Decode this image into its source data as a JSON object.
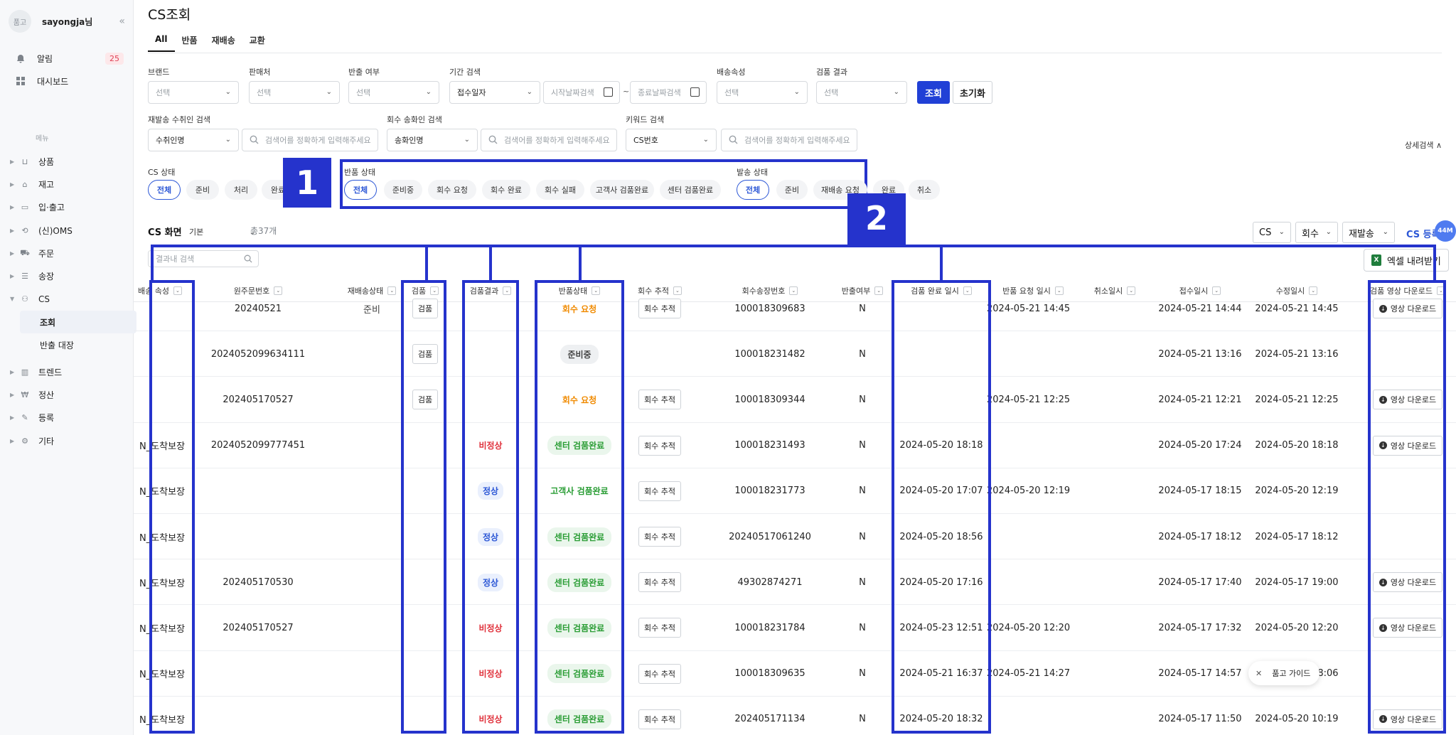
{
  "sidebar": {
    "avatar_text": "품고",
    "username": "sayongja님",
    "collapse_icon": "«",
    "top_items": [
      {
        "label": "알림",
        "badge": "25",
        "icon": "bell-icon"
      },
      {
        "label": "대시보드",
        "icon": "dashboard-icon"
      }
    ],
    "menu_caption": "메뉴",
    "menu": [
      {
        "label": "상품",
        "icon": "bag-icon"
      },
      {
        "label": "재고",
        "icon": "warehouse-icon"
      },
      {
        "label": "입·출고",
        "icon": "truck-icon"
      },
      {
        "label": "(신)OMS",
        "icon": "sync-icon"
      },
      {
        "label": "주문",
        "icon": "cart-icon"
      },
      {
        "label": "송장",
        "icon": "list-icon"
      },
      {
        "label": "CS",
        "icon": "person-icon"
      }
    ],
    "cs_sub": [
      {
        "label": "조회",
        "active": true
      },
      {
        "label": "반출 대장",
        "active": false
      }
    ],
    "menu_bottom": [
      {
        "label": "트렌드",
        "icon": "chart-icon"
      },
      {
        "label": "정산",
        "icon": "won-icon"
      },
      {
        "label": "등록",
        "icon": "pencil-icon"
      },
      {
        "label": "기타",
        "icon": "gear-icon"
      }
    ]
  },
  "header": {
    "title": "CS조회",
    "tabs": [
      "All",
      "반품",
      "재배송",
      "교환"
    ]
  },
  "filters": {
    "brand_label": "브랜드",
    "brand_value": "선택",
    "seller_label": "판매처",
    "seller_value": "선택",
    "takeout_label": "반출 여부",
    "takeout_value": "선택",
    "period_label": "기간 검색",
    "period_value": "접수일자",
    "start_placeholder": "시작날짜검색",
    "tilde": "~",
    "end_placeholder": "종료날짜검색",
    "delivery_attr_label": "배송속성",
    "delivery_attr_value": "선택",
    "inspection_label": "검품 결과",
    "inspection_value": "선택",
    "search_button": "조회",
    "reset_button": "초기화",
    "reship_label": "재발송 수취인 검색",
    "reship_value": "수취인명",
    "reship_placeholder": "검색어를 정확하게 입력해주세요",
    "pickup_label": "회수 송화인 검색",
    "pickup_value": "송화인명",
    "pickup_placeholder": "검색어를 정확하게 입력해주세요",
    "keyword_label": "키워드 검색",
    "keyword_value": "CS번호",
    "keyword_placeholder": "검색어를 정확하게 입력해주세요",
    "detail_search": "상세검색 ∧"
  },
  "status_filters": {
    "cs_label": "CS 상태",
    "cs_pills": [
      "전체",
      "준비",
      "처리",
      "완료"
    ],
    "return_label": "반품 상태",
    "return_pills": [
      "전체",
      "준비중",
      "회수 요청",
      "회수 완료",
      "회수 실패",
      "고객사 검품완료",
      "센터 검품완료"
    ],
    "ship_label": "발송 상태",
    "ship_pills": [
      "전체",
      "준비",
      "재배송 요청",
      "완료",
      "취소"
    ]
  },
  "markers": {
    "one": "1",
    "two": "2"
  },
  "list_header": {
    "title": "CS 화면",
    "view": "기본",
    "total": "총37개",
    "dropdowns": [
      "CS",
      "회수",
      "재발송"
    ],
    "register": "CS 등록",
    "floating_badge": "44M",
    "result_search_placeholder": "결과내 검색",
    "excel_button": "엑셀 내려받기"
  },
  "table": {
    "columns": [
      "배송 속성",
      "원주문번호",
      "재배송상태",
      "검품",
      "검품결과",
      "반품상태",
      "회수 추적",
      "회수송장번호",
      "반출여부",
      "검품 완료 일시",
      "반품 요청 일시",
      "취소일시",
      "접수일시",
      "수정일시",
      "검품 영상 다운로드"
    ],
    "rows": [
      {
        "attr": "",
        "order": "20240521",
        "reship": "준비",
        "inspect": "검품",
        "result": "",
        "result_type": "",
        "status": "회수 요청",
        "status_type": "orange",
        "track": "회수 추적",
        "invoice": "100018309683",
        "takeout": "N",
        "done": "",
        "req": "2024-05-21 14:45",
        "cancel": "",
        "recv": "2024-05-21 14:44",
        "mod": "2024-05-21 14:45",
        "video": "영상 다운로드"
      },
      {
        "attr": "",
        "order": "2024052099634111",
        "reship": "",
        "inspect": "검품",
        "result": "",
        "result_type": "",
        "status": "준비중",
        "status_type": "gray",
        "track": "",
        "invoice": "100018231482",
        "takeout": "N",
        "done": "",
        "req": "",
        "cancel": "",
        "recv": "2024-05-21 13:16",
        "mod": "2024-05-21 13:16",
        "video": ""
      },
      {
        "attr": "",
        "order": "202405170527",
        "reship": "",
        "inspect": "검품",
        "result": "",
        "result_type": "",
        "status": "회수 요청",
        "status_type": "orange",
        "track": "회수 추적",
        "invoice": "100018309344",
        "takeout": "N",
        "done": "",
        "req": "2024-05-21 12:25",
        "cancel": "",
        "recv": "2024-05-21 12:21",
        "mod": "2024-05-21 12:25",
        "video": "영상 다운로드"
      },
      {
        "attr": "N_도착보장",
        "order": "2024052099777451",
        "reship": "",
        "inspect": "",
        "result": "비정상",
        "result_type": "bad",
        "status": "센터 검품완료",
        "status_type": "green",
        "track": "회수 추적",
        "invoice": "100018231493",
        "takeout": "N",
        "done": "2024-05-20 18:18",
        "req": "",
        "cancel": "",
        "recv": "2024-05-20 17:24",
        "mod": "2024-05-20 18:18",
        "video": "영상 다운로드"
      },
      {
        "attr": "N_도착보장",
        "order": "",
        "reship": "",
        "inspect": "",
        "result": "정상",
        "result_type": "ok",
        "status": "고객사 검품완료",
        "status_type": "plain-green",
        "track": "회수 추적",
        "invoice": "100018231773",
        "takeout": "N",
        "done": "2024-05-20 17:07",
        "req": "2024-05-20 12:19",
        "cancel": "",
        "recv": "2024-05-17 18:15",
        "mod": "2024-05-20 12:19",
        "video": ""
      },
      {
        "attr": "N_도착보장",
        "order": "",
        "reship": "",
        "inspect": "",
        "result": "정상",
        "result_type": "ok",
        "status": "센터 검품완료",
        "status_type": "green",
        "track": "회수 추적",
        "invoice": "20240517061240",
        "takeout": "N",
        "done": "2024-05-20 18:56",
        "req": "",
        "cancel": "",
        "recv": "2024-05-17 18:12",
        "mod": "2024-05-17 18:12",
        "video": ""
      },
      {
        "attr": "N_도착보장",
        "order": "202405170530",
        "reship": "",
        "inspect": "",
        "result": "정상",
        "result_type": "ok",
        "status": "센터 검품완료",
        "status_type": "green",
        "track": "회수 추적",
        "invoice": "49302874271",
        "takeout": "N",
        "done": "2024-05-20 17:16",
        "req": "",
        "cancel": "",
        "recv": "2024-05-17 17:40",
        "mod": "2024-05-17 19:00",
        "video": "영상 다운로드"
      },
      {
        "attr": "N_도착보장",
        "order": "202405170527",
        "reship": "",
        "inspect": "",
        "result": "비정상",
        "result_type": "bad",
        "status": "센터 검품완료",
        "status_type": "green",
        "track": "회수 추적",
        "invoice": "100018231784",
        "takeout": "N",
        "done": "2024-05-23 12:51",
        "req": "2024-05-20 12:20",
        "cancel": "",
        "recv": "2024-05-17 17:32",
        "mod": "2024-05-20 12:20",
        "video": "영상 다운로드"
      },
      {
        "attr": "N_도착보장",
        "order": "",
        "reship": "",
        "inspect": "",
        "result": "비정상",
        "result_type": "bad",
        "status": "센터 검품완료",
        "status_type": "green",
        "track": "회수 추적",
        "invoice": "100018309635",
        "takeout": "N",
        "done": "2024-05-21 16:37",
        "req": "2024-05-21 14:27",
        "cancel": "",
        "recv": "2024-05-17 14:57",
        "mod": "2024-05-17 18:06",
        "video": ""
      },
      {
        "attr": "N_도착보장",
        "order": "",
        "reship": "",
        "inspect": "",
        "result": "비정상",
        "result_type": "bad",
        "status": "센터 검품완료",
        "status_type": "green",
        "track": "회수 추적",
        "invoice": "202405171134",
        "takeout": "N",
        "done": "2024-05-20 18:32",
        "req": "",
        "cancel": "",
        "recv": "2024-05-17 11:50",
        "mod": "2024-05-20 10:19",
        "video": "영상 다운로드"
      }
    ]
  },
  "guide": {
    "close": "✕",
    "label": "품고 가이드"
  },
  "colors": {
    "primary": "#2140d6",
    "annotation": "#2533cc",
    "orange": "#f08a00",
    "green": "#2a9d35",
    "red": "#e0323c",
    "blue": "#2c57d6"
  }
}
